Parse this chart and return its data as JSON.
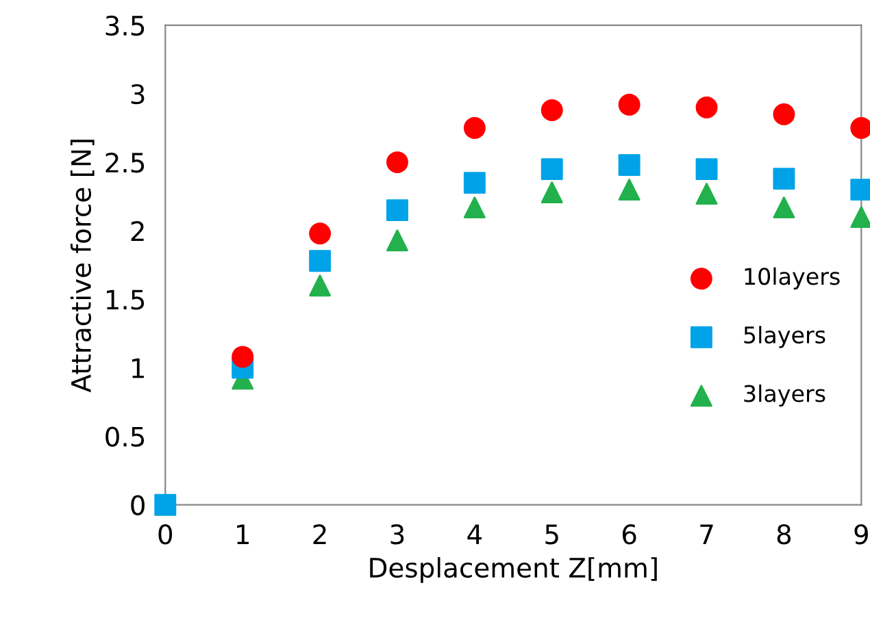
{
  "chart_data": {
    "type": "scatter",
    "xlabel": "Desplacement Z[mm]",
    "ylabel": "Attractive force [N]",
    "x": [
      0,
      1,
      2,
      3,
      4,
      5,
      6,
      7,
      8,
      9
    ],
    "series": [
      {
        "name": "10layers",
        "color": "#ff0000",
        "marker": "circle",
        "values": [
          null,
          1.08,
          1.98,
          2.5,
          2.75,
          2.88,
          2.92,
          2.9,
          2.85,
          2.75
        ]
      },
      {
        "name": "5layers",
        "color": "#00a2e8",
        "marker": "square",
        "values": [
          0,
          1.0,
          1.78,
          2.15,
          2.35,
          2.45,
          2.48,
          2.45,
          2.38,
          2.3
        ]
      },
      {
        "name": "3layers",
        "color": "#22b14c",
        "marker": "triangle",
        "values": [
          0,
          0.92,
          1.6,
          1.93,
          2.17,
          2.28,
          2.3,
          2.27,
          2.17,
          2.1
        ]
      }
    ],
    "xlim": [
      0,
      9
    ],
    "ylim": [
      0,
      3.5
    ],
    "xticks": [
      0,
      1,
      2,
      3,
      4,
      5,
      6,
      7,
      8,
      9
    ],
    "yticks": [
      0,
      0.5,
      1,
      1.5,
      2,
      2.5,
      3,
      3.5
    ],
    "grid": false,
    "legend": "right"
  }
}
